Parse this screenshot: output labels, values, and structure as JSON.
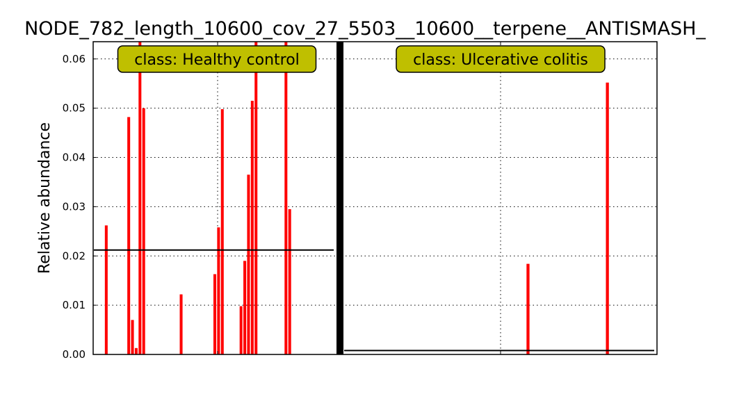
{
  "chart_data": {
    "type": "bar",
    "title": "NODE_782_length_10600_cov_27_5503__10600__terpene__ANTISMASH_",
    "ylabel": "Relative abundance",
    "ylim": [
      0,
      0.0635
    ],
    "yticks": [
      "0.00",
      "0.01",
      "0.02",
      "0.03",
      "0.04",
      "0.05",
      "0.06"
    ],
    "grid": true,
    "colors": {
      "bar": "#ff0000",
      "label_box": "#bfbf00",
      "mean_line": "#000000",
      "separator": "#000000"
    },
    "groups": [
      {
        "label": "class: Healthy control",
        "mean": 0.0212,
        "values": [
          0,
          0,
          0,
          0.0262,
          0,
          0,
          0,
          0,
          0,
          0.0482,
          0.007,
          0.0013,
          0.0635,
          0.05,
          0,
          0,
          0,
          0,
          0,
          0,
          0,
          0,
          0,
          0.0122,
          0,
          0,
          0,
          0,
          0,
          0,
          0,
          0,
          0.0163,
          0.0258,
          0.0498,
          0,
          0,
          0,
          0,
          0.0098,
          0.019,
          0.0365,
          0.0515,
          0.0635,
          0,
          0,
          0,
          0,
          0,
          0,
          0,
          0.0635,
          0.0295,
          0,
          0,
          0,
          0,
          0,
          0,
          0,
          0,
          0,
          0,
          0,
          0
        ]
      },
      {
        "label": "class: Ulcerative colitis",
        "mean": 0.0008,
        "values": [
          0,
          0,
          0,
          0,
          0,
          0,
          0,
          0,
          0,
          0,
          0,
          0,
          0,
          0,
          0,
          0,
          0,
          0,
          0,
          0,
          0,
          0,
          0,
          0,
          0,
          0,
          0,
          0,
          0,
          0,
          0,
          0,
          0,
          0,
          0,
          0,
          0,
          0,
          0,
          0,
          0,
          0,
          0,
          0,
          0,
          0,
          0.0184,
          0,
          0,
          0,
          0,
          0,
          0,
          0,
          0,
          0,
          0,
          0,
          0,
          0,
          0,
          0,
          0,
          0,
          0,
          0,
          0.0552,
          0,
          0,
          0,
          0,
          0,
          0,
          0,
          0,
          0,
          0,
          0,
          0
        ]
      }
    ]
  }
}
